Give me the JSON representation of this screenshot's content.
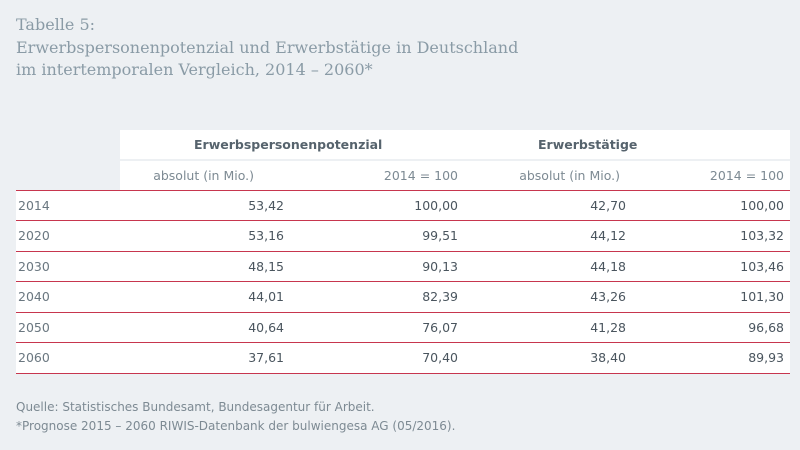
{
  "title": {
    "line1": "Tabelle 5:",
    "line2": "Erwerbspersonenpotenzial und Erwerbstätige in Deutschland",
    "line3": "im intertemporalen Vergleich, 2014 – 2060*"
  },
  "table": {
    "groups": [
      "Erwerbspersonenpotenzial",
      "Erwerbstätige"
    ],
    "subheaders": [
      "absolut (in Mio.)",
      "2014 = 100",
      "absolut (in Mio.)",
      "2014 = 100"
    ],
    "rows": [
      {
        "year": "2014",
        "c1": "53,42",
        "c2": "100,00",
        "c3": "42,70",
        "c4": "100,00"
      },
      {
        "year": "2020",
        "c1": "53,16",
        "c2": "99,51",
        "c3": "44,12",
        "c4": "103,32"
      },
      {
        "year": "2030",
        "c1": "48,15",
        "c2": "90,13",
        "c3": "44,18",
        "c4": "103,46"
      },
      {
        "year": "2040",
        "c1": "44,01",
        "c2": "82,39",
        "c3": "43,26",
        "c4": "101,30"
      },
      {
        "year": "2050",
        "c1": "40,64",
        "c2": "76,07",
        "c3": "41,28",
        "c4": "96,68"
      },
      {
        "year": "2060",
        "c1": "37,61",
        "c2": "70,40",
        "c3": "38,40",
        "c4": "89,93"
      }
    ]
  },
  "footer": {
    "source": "Quelle: Statistisches Bundesamt, Bundesagentur für Arbeit.",
    "note": "*Prognose 2015 – 2060 RIWIS-Datenbank der bulwiengesa AG (05/2016)."
  },
  "colors": {
    "background": "#edf0f3",
    "title": "#8a9ba6",
    "rule": "#c7364e",
    "cell": "#ffffff"
  }
}
